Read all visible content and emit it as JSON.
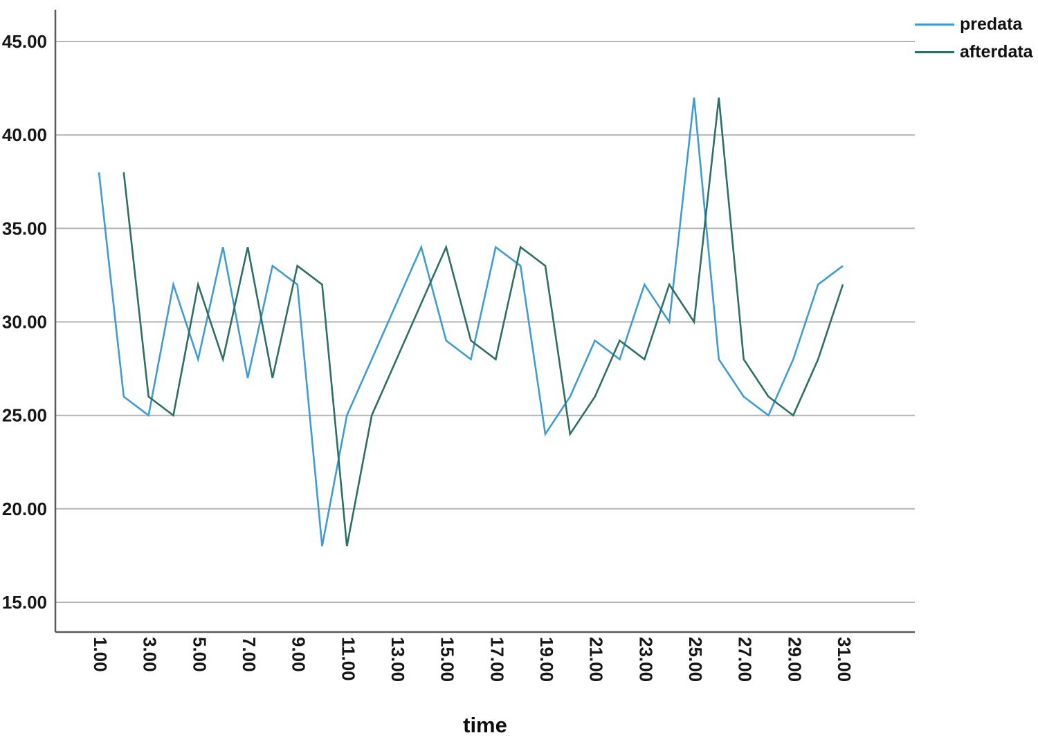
{
  "legend": {
    "items": [
      {
        "label": "predata",
        "color": "#3F9BD3"
      },
      {
        "label": "afterdata",
        "color": "#2E6F63"
      }
    ]
  },
  "axes": {
    "x_title": "time"
  },
  "chart_data": {
    "type": "line",
    "title": "",
    "xlabel": "time",
    "ylabel": "",
    "grid": "horizontal",
    "grid_color": "#b4b4b4",
    "axis_color": "#5a5a5a",
    "legend_position": "top-right",
    "ylim": [
      13.5,
      46.7
    ],
    "y_ticks": [
      {
        "label": "45.00",
        "value": 45
      },
      {
        "label": "40.00",
        "value": 40
      },
      {
        "label": "35.00",
        "value": 35
      },
      {
        "label": "30.00",
        "value": 30
      },
      {
        "label": "25.00",
        "value": 25
      },
      {
        "label": "20.00",
        "value": 20
      },
      {
        "label": "15.00",
        "value": 15
      }
    ],
    "x_ticks": [
      {
        "label": "1.00",
        "value": 1
      },
      {
        "label": "3.00",
        "value": 3
      },
      {
        "label": "5.00",
        "value": 5
      },
      {
        "label": "7.00",
        "value": 7
      },
      {
        "label": "9.00",
        "value": 9
      },
      {
        "label": "11.00",
        "value": 11
      },
      {
        "label": "13.00",
        "value": 13
      },
      {
        "label": "15.00",
        "value": 15
      },
      {
        "label": "17.00",
        "value": 17
      },
      {
        "label": "19.00",
        "value": 19
      },
      {
        "label": "21.00",
        "value": 21
      },
      {
        "label": "23.00",
        "value": 23
      },
      {
        "label": "25.00",
        "value": 25
      },
      {
        "label": "27.00",
        "value": 27
      },
      {
        "label": "29.00",
        "value": 29
      },
      {
        "label": "31.00",
        "value": 31
      }
    ],
    "series": [
      {
        "name": "predata",
        "color": "#3F9BD3",
        "x_start": 1,
        "values": [
          38,
          26,
          25,
          32,
          28,
          34,
          27,
          33,
          32,
          18,
          25,
          28,
          31,
          34,
          29,
          28,
          34,
          33,
          24,
          26,
          29,
          28,
          32,
          30,
          42,
          28,
          26,
          25,
          28,
          32,
          33
        ]
      },
      {
        "name": "afterdata",
        "color": "#2E6F63",
        "x_start": 2,
        "values": [
          38,
          26,
          25,
          32,
          28,
          34,
          27,
          33,
          32,
          18,
          25,
          28,
          31,
          34,
          29,
          28,
          34,
          33,
          24,
          26,
          29,
          28,
          32,
          30,
          42,
          28,
          26,
          25,
          28,
          32
        ]
      }
    ]
  }
}
